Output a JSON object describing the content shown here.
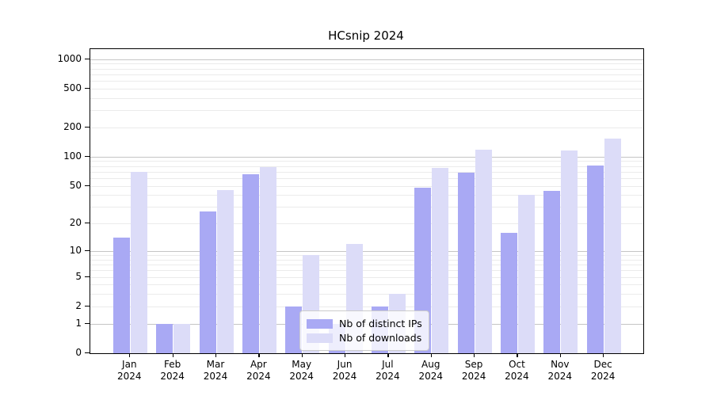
{
  "chart_data": {
    "type": "bar",
    "title": "HCsnip 2024",
    "y_scale": "log(value+1)",
    "categories": [
      "Jan 2024",
      "Feb 2024",
      "Mar 2024",
      "Apr 2024",
      "May 2024",
      "Jun 2024",
      "Jul 2024",
      "Aug 2024",
      "Sep 2024",
      "Oct 2024",
      "Nov 2024",
      "Dec 2024"
    ],
    "series": [
      {
        "name": "Nb of distinct IPs",
        "color": "#a9a9f4",
        "values": [
          14,
          1,
          27,
          66,
          2,
          1,
          2,
          48,
          68,
          16,
          44,
          81
        ]
      },
      {
        "name": "Nb of downloads",
        "color": "#dcdcf8",
        "values": [
          70,
          1,
          45,
          78,
          9,
          12,
          3,
          76,
          118,
          40,
          115,
          155
        ]
      }
    ],
    "y_ticks": [
      0,
      1,
      2,
      5,
      10,
      20,
      50,
      100,
      200,
      500,
      1000
    ],
    "major_gridlines": [
      1,
      10,
      100,
      1000
    ],
    "ylim": [
      0,
      1300
    ],
    "grid": "horizontal",
    "legend_position": "lower-center",
    "xlabel": "",
    "ylabel": ""
  }
}
